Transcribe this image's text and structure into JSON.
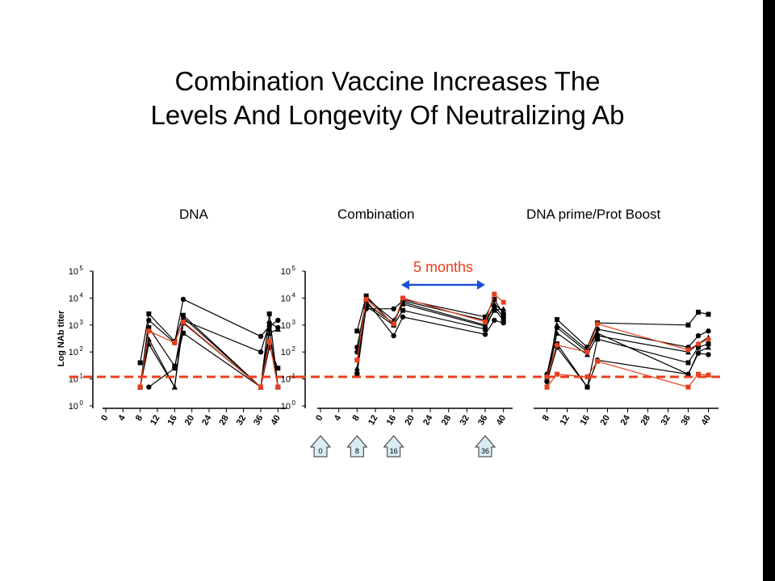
{
  "slide": {
    "title_line1": "Combination Vaccine Increases The",
    "title_line2": "Levels And Longevity Of Neutralizing Ab"
  },
  "colors": {
    "threshold": "#e8401c",
    "annotation": "#e8401c",
    "arrow": "#1f4fd8",
    "series": "#000000",
    "highlight": "#e8401c",
    "immunization_box": "#d8ecf2"
  },
  "chart_data": [
    {
      "type": "line",
      "title": "DNA",
      "ylabel": "Log NAb titer",
      "yscale": "log",
      "ylim": [
        1,
        100000
      ],
      "yticks": [
        1,
        10,
        100,
        1000,
        10000,
        100000
      ],
      "ytick_labels": [
        [
          "10",
          "0"
        ],
        [
          "10",
          "1"
        ],
        [
          "10",
          "2"
        ],
        [
          "10",
          "3"
        ],
        [
          "10",
          "4"
        ],
        [
          "10",
          "5"
        ]
      ],
      "xlim": [
        0,
        42
      ],
      "xticks": [
        "0",
        "4",
        "8",
        "12",
        "16",
        "20",
        "24",
        "28",
        "32",
        "36",
        "40"
      ],
      "threshold": 12,
      "series": [
        {
          "highlight": false,
          "values": [
            [
              8,
              40
            ],
            [
              10,
              2600
            ],
            [
              16,
              250
            ],
            [
              18,
              2300
            ],
            [
              36,
              5
            ],
            [
              38,
              2600
            ],
            [
              40,
              5
            ]
          ]
        },
        {
          "highlight": false,
          "values": [
            [
              8,
              5
            ],
            [
              10,
              1500
            ],
            [
              16,
              220
            ],
            [
              18,
              9000
            ],
            [
              36,
              380
            ],
            [
              38,
              900
            ],
            [
              40,
              1500
            ]
          ]
        },
        {
          "highlight": false,
          "values": [
            [
              8,
              5
            ],
            [
              10,
              300
            ],
            [
              16,
              5
            ],
            [
              18,
              1900
            ],
            [
              36,
              5
            ],
            [
              38,
              500
            ],
            [
              40,
              700
            ]
          ]
        },
        {
          "highlight": false,
          "values": [
            [
              8,
              5
            ],
            [
              10,
              800
            ],
            [
              16,
              30
            ],
            [
              18,
              500
            ],
            [
              36,
              5
            ],
            [
              38,
              150
            ],
            [
              40,
              25
            ]
          ]
        },
        {
          "highlight": false,
          "values": [
            [
              10,
              5
            ],
            [
              16,
              25
            ],
            [
              18,
              1500
            ],
            [
              36,
              100
            ],
            [
              38,
              1200
            ],
            [
              40,
              800
            ]
          ]
        },
        {
          "highlight": false,
          "values": [
            [
              8,
              5
            ],
            [
              10,
              200
            ],
            [
              16,
              5
            ],
            [
              18,
              1200
            ],
            [
              36,
              5
            ],
            [
              38,
              700
            ],
            [
              40,
              5
            ]
          ]
        },
        {
          "highlight": true,
          "values": [
            [
              8,
              5
            ],
            [
              10,
              600
            ],
            [
              16,
              220
            ],
            [
              18,
              1300
            ],
            [
              36,
              5
            ],
            [
              38,
              250
            ],
            [
              40,
              5
            ]
          ]
        }
      ]
    },
    {
      "type": "line",
      "title": "Combination",
      "yscale": "log",
      "ylim": [
        1,
        100000
      ],
      "yticks": [
        1,
        10,
        100,
        1000,
        10000,
        100000
      ],
      "ytick_labels": [
        [
          "10",
          "0"
        ],
        [
          "10",
          "1"
        ],
        [
          "10",
          "2"
        ],
        [
          "10",
          "3"
        ],
        [
          "10",
          "4"
        ],
        [
          "10",
          "5"
        ]
      ],
      "xlim": [
        0,
        42
      ],
      "xticks": [
        "0",
        "4",
        "8",
        "12",
        "16",
        "20",
        "24",
        "28",
        "32",
        "36",
        "40"
      ],
      "threshold": 12,
      "annotation": "5 months",
      "annotation_span": [
        18,
        36
      ],
      "immunizations": [
        "0",
        "8",
        "16",
        "36"
      ],
      "series": [
        {
          "highlight": false,
          "values": [
            [
              8,
              600
            ],
            [
              10,
              12000
            ],
            [
              16,
              1000
            ],
            [
              18,
              9000
            ],
            [
              36,
              2000
            ],
            [
              38,
              9000
            ],
            [
              40,
              2500
            ]
          ]
        },
        {
          "highlight": false,
          "values": [
            [
              8,
              150
            ],
            [
              10,
              8000
            ],
            [
              16,
              400
            ],
            [
              18,
              2000
            ],
            [
              36,
              450
            ],
            [
              38,
              1500
            ],
            [
              40,
              1200
            ]
          ]
        },
        {
          "highlight": false,
          "values": [
            [
              8,
              25
            ],
            [
              10,
              6000
            ],
            [
              16,
              1200
            ],
            [
              18,
              7000
            ],
            [
              36,
              1000
            ],
            [
              38,
              6000
            ],
            [
              40,
              3000
            ]
          ]
        },
        {
          "highlight": false,
          "values": [
            [
              8,
              15
            ],
            [
              10,
              5000
            ],
            [
              16,
              1000
            ],
            [
              18,
              3500
            ],
            [
              36,
              700
            ],
            [
              38,
              4000
            ],
            [
              40,
              1500
            ]
          ]
        },
        {
          "highlight": false,
          "values": [
            [
              8,
              100
            ],
            [
              10,
              4000
            ],
            [
              16,
              4000
            ],
            [
              18,
              8000
            ],
            [
              36,
              1500
            ],
            [
              38,
              5000
            ],
            [
              40,
              2000
            ]
          ]
        },
        {
          "highlight": false,
          "values": [
            [
              8,
              20
            ],
            [
              10,
              10000
            ],
            [
              16,
              1500
            ],
            [
              18,
              6000
            ],
            [
              36,
              900
            ],
            [
              38,
              3500
            ],
            [
              40,
              4000
            ]
          ]
        },
        {
          "highlight": true,
          "values": [
            [
              8,
              50
            ],
            [
              10,
              9000
            ],
            [
              16,
              1100
            ],
            [
              18,
              10000
            ],
            [
              36,
              1300
            ],
            [
              38,
              14000
            ],
            [
              40,
              7000
            ]
          ]
        }
      ]
    },
    {
      "type": "line",
      "title": "DNA prime/Prot Boost",
      "yscale": "log",
      "ylim": [
        1,
        100000
      ],
      "xlim": [
        6,
        42
      ],
      "xticks": [
        "8",
        "12",
        "16",
        "20",
        "24",
        "28",
        "32",
        "36",
        "40"
      ],
      "threshold": 12,
      "series": [
        {
          "highlight": false,
          "values": [
            [
              8,
              5
            ],
            [
              10,
              1600
            ],
            [
              16,
              150
            ],
            [
              18,
              1200
            ],
            [
              36,
              1000
            ],
            [
              38,
              3000
            ],
            [
              40,
              2500
            ]
          ]
        },
        {
          "highlight": false,
          "values": [
            [
              8,
              15
            ],
            [
              10,
              800
            ],
            [
              16,
              100
            ],
            [
              18,
              700
            ],
            [
              36,
              150
            ],
            [
              38,
              400
            ],
            [
              40,
              600
            ]
          ]
        },
        {
          "highlight": false,
          "values": [
            [
              8,
              10
            ],
            [
              10,
              500
            ],
            [
              16,
              80
            ],
            [
              18,
              400
            ],
            [
              36,
              100
            ],
            [
              38,
              200
            ],
            [
              40,
              350
            ]
          ]
        },
        {
          "highlight": false,
          "values": [
            [
              8,
              12
            ],
            [
              10,
              200
            ],
            [
              16,
              5
            ],
            [
              18,
              300
            ],
            [
              36,
              40
            ],
            [
              38,
              150
            ],
            [
              40,
              200
            ]
          ]
        },
        {
          "highlight": false,
          "values": [
            [
              8,
              8
            ],
            [
              10,
              150
            ],
            [
              16,
              5
            ],
            [
              18,
              50
            ],
            [
              36,
              15
            ],
            [
              38,
              90
            ],
            [
              40,
              80
            ]
          ]
        },
        {
          "highlight": false,
          "values": [
            [
              8,
              10
            ],
            [
              10,
              1000
            ],
            [
              16,
              120
            ],
            [
              18,
              500
            ],
            [
              36,
              15
            ],
            [
              38,
              100
            ],
            [
              40,
              150
            ]
          ]
        },
        {
          "highlight": true,
          "values": [
            [
              8,
              5
            ],
            [
              10,
              15
            ],
            [
              16,
              12
            ],
            [
              18,
              45
            ],
            [
              36,
              5
            ],
            [
              38,
              15
            ],
            [
              40,
              14
            ]
          ]
        },
        {
          "highlight": true,
          "values": [
            [
              8,
              12
            ],
            [
              10,
              180
            ],
            [
              16,
              100
            ],
            [
              18,
              1100
            ],
            [
              36,
              120
            ],
            [
              38,
              200
            ],
            [
              40,
              300
            ]
          ]
        }
      ]
    }
  ]
}
